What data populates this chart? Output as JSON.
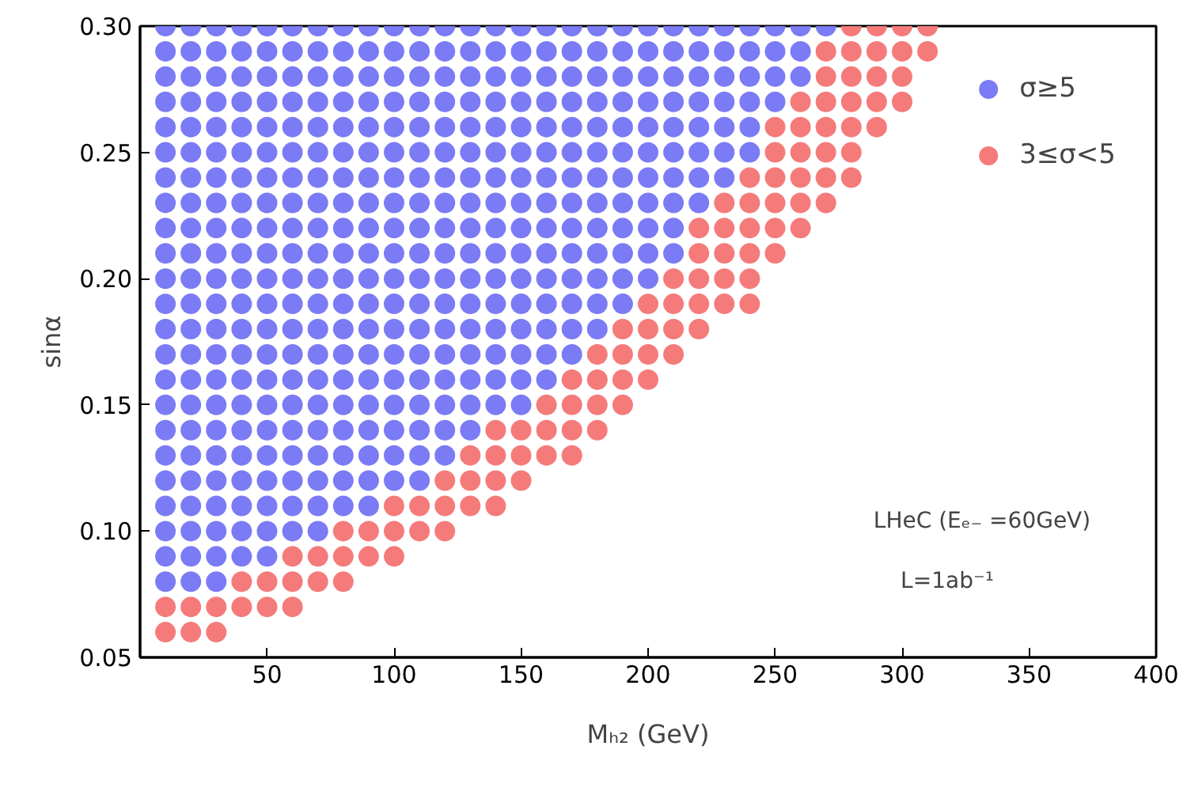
{
  "chart_data": {
    "type": "scatter",
    "xlabel": "Mₕ₂ (GeV)",
    "ylabel": "sinα",
    "xlim": [
      0,
      400
    ],
    "xticks": [
      50,
      100,
      150,
      200,
      250,
      300,
      350,
      400
    ],
    "ylim": [
      0.05,
      0.3
    ],
    "yticks": [
      {
        "value": 0.05,
        "label": "0.05"
      },
      {
        "value": 0.1,
        "label": "0.10"
      },
      {
        "value": 0.15,
        "label": "0.15"
      },
      {
        "value": 0.2,
        "label": "0.20"
      },
      {
        "value": 0.25,
        "label": "0.25"
      },
      {
        "value": 0.3,
        "label": "0.30"
      }
    ],
    "grid": false,
    "legend": "top right",
    "marker": "circle",
    "annotations": [
      "LHeC (Eₑ₋ =60GeV)",
      "L=1ab⁻¹"
    ],
    "series": [
      {
        "name": "σ≥5",
        "color": "#7b7bf5",
        "x": [
          10,
          20,
          30,
          10,
          20,
          30,
          40,
          50,
          10,
          20,
          30,
          40,
          50,
          60,
          70,
          10,
          20,
          30,
          40,
          50,
          60,
          70,
          80,
          90,
          10,
          20,
          30,
          40,
          50,
          60,
          70,
          80,
          90,
          100,
          110,
          10,
          20,
          30,
          40,
          50,
          60,
          70,
          80,
          90,
          100,
          110,
          120,
          10,
          20,
          30,
          40,
          50,
          60,
          70,
          80,
          90,
          100,
          110,
          120,
          130,
          10,
          20,
          30,
          40,
          50,
          60,
          70,
          80,
          90,
          100,
          110,
          120,
          130,
          140,
          150,
          10,
          20,
          30,
          40,
          50,
          60,
          70,
          80,
          90,
          100,
          110,
          120,
          130,
          140,
          150,
          160,
          10,
          20,
          30,
          40,
          50,
          60,
          70,
          80,
          90,
          100,
          110,
          120,
          130,
          140,
          150,
          160,
          170,
          10,
          20,
          30,
          40,
          50,
          60,
          70,
          80,
          90,
          100,
          110,
          120,
          130,
          140,
          150,
          160,
          170,
          180,
          10,
          20,
          30,
          40,
          50,
          60,
          70,
          80,
          90,
          100,
          110,
          120,
          130,
          140,
          150,
          160,
          170,
          180,
          190,
          10,
          20,
          30,
          40,
          50,
          60,
          70,
          80,
          90,
          100,
          110,
          120,
          130,
          140,
          150,
          160,
          170,
          180,
          190,
          200,
          10,
          20,
          30,
          40,
          50,
          60,
          70,
          80,
          90,
          100,
          110,
          120,
          130,
          140,
          150,
          160,
          170,
          180,
          190,
          200,
          210,
          10,
          20,
          30,
          40,
          50,
          60,
          70,
          80,
          90,
          100,
          110,
          120,
          130,
          140,
          150,
          160,
          170,
          180,
          190,
          200,
          210,
          10,
          20,
          30,
          40,
          50,
          60,
          70,
          80,
          90,
          100,
          110,
          120,
          130,
          140,
          150,
          160,
          170,
          180,
          190,
          200,
          210,
          220,
          10,
          20,
          30,
          40,
          50,
          60,
          70,
          80,
          90,
          100,
          110,
          120,
          130,
          140,
          150,
          160,
          170,
          180,
          190,
          200,
          210,
          220,
          230,
          10,
          20,
          30,
          40,
          50,
          60,
          70,
          80,
          90,
          100,
          110,
          120,
          130,
          140,
          150,
          160,
          170,
          180,
          190,
          200,
          210,
          220,
          230,
          240,
          10,
          20,
          30,
          40,
          50,
          60,
          70,
          80,
          90,
          100,
          110,
          120,
          130,
          140,
          150,
          160,
          170,
          180,
          190,
          200,
          210,
          220,
          230,
          240,
          10,
          20,
          30,
          40,
          50,
          60,
          70,
          80,
          90,
          100,
          110,
          120,
          130,
          140,
          150,
          160,
          170,
          180,
          190,
          200,
          210,
          220,
          230,
          240,
          250,
          10,
          20,
          30,
          40,
          50,
          60,
          70,
          80,
          90,
          100,
          110,
          120,
          130,
          140,
          150,
          160,
          170,
          180,
          190,
          200,
          210,
          220,
          230,
          240,
          250,
          260,
          10,
          20,
          30,
          40,
          50,
          60,
          70,
          80,
          90,
          100,
          110,
          120,
          130,
          140,
          150,
          160,
          170,
          180,
          190,
          200,
          210,
          220,
          230,
          240,
          250,
          260,
          10,
          20,
          30,
          40,
          50,
          60,
          70,
          80,
          90,
          100,
          110,
          120,
          130,
          140,
          150,
          160,
          170,
          180,
          190,
          200,
          210,
          220,
          230,
          240,
          250,
          260,
          270
        ],
        "values": [
          0.08,
          0.08,
          0.08,
          0.09,
          0.09,
          0.09,
          0.09,
          0.09,
          0.1,
          0.1,
          0.1,
          0.1,
          0.1,
          0.1,
          0.1,
          0.11,
          0.11,
          0.11,
          0.11,
          0.11,
          0.11,
          0.11,
          0.11,
          0.11,
          0.12,
          0.12,
          0.12,
          0.12,
          0.12,
          0.12,
          0.12,
          0.12,
          0.12,
          0.12,
          0.12,
          0.13,
          0.13,
          0.13,
          0.13,
          0.13,
          0.13,
          0.13,
          0.13,
          0.13,
          0.13,
          0.13,
          0.13,
          0.14,
          0.14,
          0.14,
          0.14,
          0.14,
          0.14,
          0.14,
          0.14,
          0.14,
          0.14,
          0.14,
          0.14,
          0.14,
          0.15,
          0.15,
          0.15,
          0.15,
          0.15,
          0.15,
          0.15,
          0.15,
          0.15,
          0.15,
          0.15,
          0.15,
          0.15,
          0.15,
          0.15,
          0.16,
          0.16,
          0.16,
          0.16,
          0.16,
          0.16,
          0.16,
          0.16,
          0.16,
          0.16,
          0.16,
          0.16,
          0.16,
          0.16,
          0.16,
          0.16,
          0.17,
          0.17,
          0.17,
          0.17,
          0.17,
          0.17,
          0.17,
          0.17,
          0.17,
          0.17,
          0.17,
          0.17,
          0.17,
          0.17,
          0.17,
          0.17,
          0.17,
          0.18,
          0.18,
          0.18,
          0.18,
          0.18,
          0.18,
          0.18,
          0.18,
          0.18,
          0.18,
          0.18,
          0.18,
          0.18,
          0.18,
          0.18,
          0.18,
          0.18,
          0.18,
          0.19,
          0.19,
          0.19,
          0.19,
          0.19,
          0.19,
          0.19,
          0.19,
          0.19,
          0.19,
          0.19,
          0.19,
          0.19,
          0.19,
          0.19,
          0.19,
          0.19,
          0.19,
          0.19,
          0.2,
          0.2,
          0.2,
          0.2,
          0.2,
          0.2,
          0.2,
          0.2,
          0.2,
          0.2,
          0.2,
          0.2,
          0.2,
          0.2,
          0.2,
          0.2,
          0.2,
          0.2,
          0.2,
          0.2,
          0.21,
          0.21,
          0.21,
          0.21,
          0.21,
          0.21,
          0.21,
          0.21,
          0.21,
          0.21,
          0.21,
          0.21,
          0.21,
          0.21,
          0.21,
          0.21,
          0.21,
          0.21,
          0.21,
          0.21,
          0.21,
          0.22,
          0.22,
          0.22,
          0.22,
          0.22,
          0.22,
          0.22,
          0.22,
          0.22,
          0.22,
          0.22,
          0.22,
          0.22,
          0.22,
          0.22,
          0.22,
          0.22,
          0.22,
          0.22,
          0.22,
          0.22,
          0.23,
          0.23,
          0.23,
          0.23,
          0.23,
          0.23,
          0.23,
          0.23,
          0.23,
          0.23,
          0.23,
          0.23,
          0.23,
          0.23,
          0.23,
          0.23,
          0.23,
          0.23,
          0.23,
          0.23,
          0.23,
          0.23,
          0.24,
          0.24,
          0.24,
          0.24,
          0.24,
          0.24,
          0.24,
          0.24,
          0.24,
          0.24,
          0.24,
          0.24,
          0.24,
          0.24,
          0.24,
          0.24,
          0.24,
          0.24,
          0.24,
          0.24,
          0.24,
          0.24,
          0.24,
          0.25,
          0.25,
          0.25,
          0.25,
          0.25,
          0.25,
          0.25,
          0.25,
          0.25,
          0.25,
          0.25,
          0.25,
          0.25,
          0.25,
          0.25,
          0.25,
          0.25,
          0.25,
          0.25,
          0.25,
          0.25,
          0.25,
          0.25,
          0.25,
          0.26,
          0.26,
          0.26,
          0.26,
          0.26,
          0.26,
          0.26,
          0.26,
          0.26,
          0.26,
          0.26,
          0.26,
          0.26,
          0.26,
          0.26,
          0.26,
          0.26,
          0.26,
          0.26,
          0.26,
          0.26,
          0.26,
          0.26,
          0.26,
          0.27,
          0.27,
          0.27,
          0.27,
          0.27,
          0.27,
          0.27,
          0.27,
          0.27,
          0.27,
          0.27,
          0.27,
          0.27,
          0.27,
          0.27,
          0.27,
          0.27,
          0.27,
          0.27,
          0.27,
          0.27,
          0.27,
          0.27,
          0.27,
          0.27,
          0.28,
          0.28,
          0.28,
          0.28,
          0.28,
          0.28,
          0.28,
          0.28,
          0.28,
          0.28,
          0.28,
          0.28,
          0.28,
          0.28,
          0.28,
          0.28,
          0.28,
          0.28,
          0.28,
          0.28,
          0.28,
          0.28,
          0.28,
          0.28,
          0.28,
          0.28,
          0.29,
          0.29,
          0.29,
          0.29,
          0.29,
          0.29,
          0.29,
          0.29,
          0.29,
          0.29,
          0.29,
          0.29,
          0.29,
          0.29,
          0.29,
          0.29,
          0.29,
          0.29,
          0.29,
          0.29,
          0.29,
          0.29,
          0.29,
          0.29,
          0.29,
          0.29,
          0.3,
          0.3,
          0.3,
          0.3,
          0.3,
          0.3,
          0.3,
          0.3,
          0.3,
          0.3,
          0.3,
          0.3,
          0.3,
          0.3,
          0.3,
          0.3,
          0.3,
          0.3,
          0.3,
          0.3,
          0.3,
          0.3,
          0.3,
          0.3,
          0.3,
          0.3,
          0.3
        ]
      },
      {
        "name": "3≤σ<5",
        "color": "#f57b7b",
        "x": [
          10,
          20,
          30,
          10,
          20,
          30,
          40,
          50,
          60,
          40,
          50,
          60,
          70,
          80,
          60,
          70,
          80,
          90,
          100,
          80,
          90,
          100,
          110,
          120,
          100,
          110,
          120,
          130,
          140,
          120,
          130,
          140,
          150,
          130,
          140,
          150,
          160,
          170,
          140,
          150,
          160,
          170,
          180,
          160,
          170,
          180,
          190,
          170,
          180,
          190,
          200,
          180,
          190,
          200,
          210,
          190,
          200,
          210,
          220,
          200,
          210,
          220,
          230,
          240,
          210,
          220,
          230,
          240,
          220,
          230,
          240,
          250,
          220,
          230,
          240,
          250,
          260,
          230,
          240,
          250,
          260,
          270,
          240,
          250,
          260,
          270,
          280,
          250,
          260,
          270,
          280,
          250,
          260,
          270,
          280,
          290,
          260,
          270,
          280,
          290,
          300,
          270,
          280,
          290,
          300,
          270,
          280,
          290,
          300,
          310,
          280,
          290,
          300,
          310
        ],
        "values": [
          0.06,
          0.06,
          0.06,
          0.07,
          0.07,
          0.07,
          0.07,
          0.07,
          0.07,
          0.08,
          0.08,
          0.08,
          0.08,
          0.08,
          0.09,
          0.09,
          0.09,
          0.09,
          0.09,
          0.1,
          0.1,
          0.1,
          0.1,
          0.1,
          0.11,
          0.11,
          0.11,
          0.11,
          0.11,
          0.12,
          0.12,
          0.12,
          0.12,
          0.13,
          0.13,
          0.13,
          0.13,
          0.13,
          0.14,
          0.14,
          0.14,
          0.14,
          0.14,
          0.15,
          0.15,
          0.15,
          0.15,
          0.16,
          0.16,
          0.16,
          0.16,
          0.17,
          0.17,
          0.17,
          0.17,
          0.18,
          0.18,
          0.18,
          0.18,
          0.19,
          0.19,
          0.19,
          0.19,
          0.19,
          0.2,
          0.2,
          0.2,
          0.2,
          0.21,
          0.21,
          0.21,
          0.21,
          0.22,
          0.22,
          0.22,
          0.22,
          0.22,
          0.23,
          0.23,
          0.23,
          0.23,
          0.23,
          0.24,
          0.24,
          0.24,
          0.24,
          0.24,
          0.25,
          0.25,
          0.25,
          0.25,
          0.26,
          0.26,
          0.26,
          0.26,
          0.26,
          0.27,
          0.27,
          0.27,
          0.27,
          0.27,
          0.28,
          0.28,
          0.28,
          0.28,
          0.29,
          0.29,
          0.29,
          0.29,
          0.29,
          0.3,
          0.3,
          0.3,
          0.3
        ]
      }
    ]
  }
}
